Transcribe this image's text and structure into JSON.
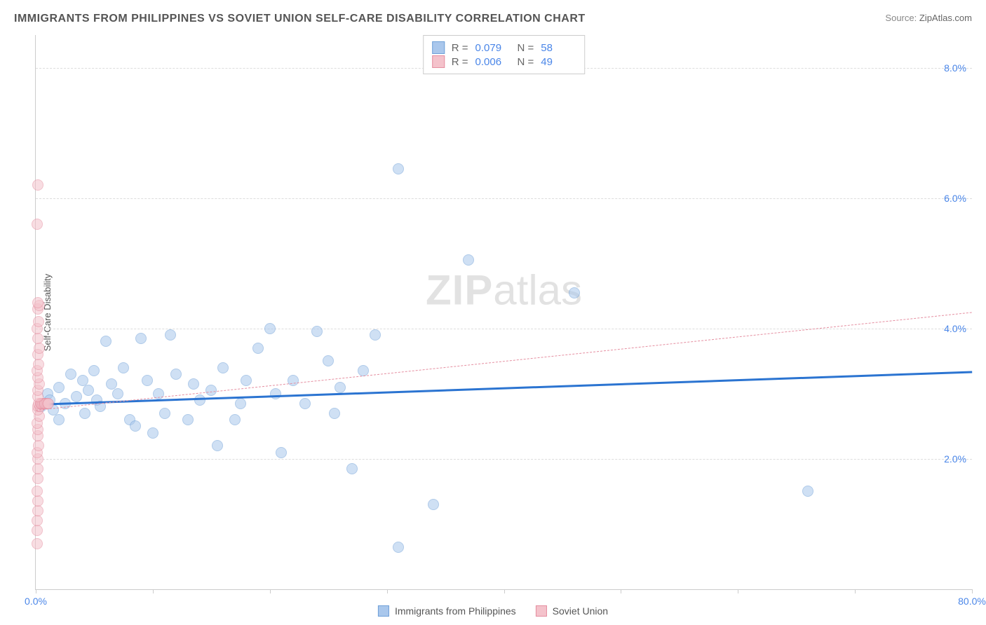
{
  "title": "IMMIGRANTS FROM PHILIPPINES VS SOVIET UNION SELF-CARE DISABILITY CORRELATION CHART",
  "source_label": "Source:",
  "source_value": "ZipAtlas.com",
  "watermark": {
    "bold": "ZIP",
    "rest": "atlas"
  },
  "ylabel": "Self-Care Disability",
  "chart": {
    "type": "scatter",
    "background_color": "#ffffff",
    "grid_color": "#dddddd",
    "axis_color": "#cccccc",
    "xlim": [
      0,
      80
    ],
    "ylim": [
      0,
      8.5
    ],
    "xticks": [
      0,
      10,
      20,
      30,
      40,
      50,
      60,
      70,
      80
    ],
    "xtick_labels": {
      "0": "0.0%",
      "80": "80.0%"
    },
    "xtick_label_color": "#4a86e8",
    "yticks": [
      2,
      4,
      6,
      8
    ],
    "ytick_labels": {
      "2": "2.0%",
      "4": "4.0%",
      "6": "6.0%",
      "8": "8.0%"
    },
    "ytick_label_color": "#4a86e8",
    "marker_radius": 8,
    "marker_opacity": 0.55,
    "series": [
      {
        "id": "philippines",
        "label": "Immigrants from Philippines",
        "color_fill": "#a9c7ec",
        "color_stroke": "#6fa0d8",
        "R": "0.079",
        "N": "58",
        "trend": {
          "y_at_x0": 2.85,
          "y_at_xmax": 3.35,
          "color": "#2b74d1",
          "width": 3,
          "dash": "solid"
        },
        "points": [
          [
            0.5,
            2.8
          ],
          [
            1,
            3.0
          ],
          [
            1.2,
            2.9
          ],
          [
            1.5,
            2.75
          ],
          [
            2,
            3.1
          ],
          [
            2,
            2.6
          ],
          [
            2.5,
            2.85
          ],
          [
            3,
            3.3
          ],
          [
            3.5,
            2.95
          ],
          [
            4,
            3.2
          ],
          [
            4.2,
            2.7
          ],
          [
            4.5,
            3.05
          ],
          [
            5,
            3.35
          ],
          [
            5.2,
            2.9
          ],
          [
            5.5,
            2.8
          ],
          [
            6,
            3.8
          ],
          [
            6.5,
            3.15
          ],
          [
            7,
            3.0
          ],
          [
            7.5,
            3.4
          ],
          [
            8,
            2.6
          ],
          [
            8.5,
            2.5
          ],
          [
            9,
            3.85
          ],
          [
            9.5,
            3.2
          ],
          [
            10,
            2.4
          ],
          [
            10.5,
            3.0
          ],
          [
            11,
            2.7
          ],
          [
            11.5,
            3.9
          ],
          [
            12,
            3.3
          ],
          [
            13,
            2.6
          ],
          [
            13.5,
            3.15
          ],
          [
            14,
            2.9
          ],
          [
            15,
            3.05
          ],
          [
            15.5,
            2.2
          ],
          [
            16,
            3.4
          ],
          [
            17,
            2.6
          ],
          [
            17.5,
            2.85
          ],
          [
            18,
            3.2
          ],
          [
            19,
            3.7
          ],
          [
            20,
            4.0
          ],
          [
            20.5,
            3.0
          ],
          [
            21,
            2.1
          ],
          [
            22,
            3.2
          ],
          [
            23,
            2.85
          ],
          [
            24,
            3.95
          ],
          [
            25,
            3.5
          ],
          [
            25.5,
            2.7
          ],
          [
            26,
            3.1
          ],
          [
            27,
            1.85
          ],
          [
            28,
            3.35
          ],
          [
            29,
            3.9
          ],
          [
            31,
            6.45
          ],
          [
            31,
            0.65
          ],
          [
            34,
            1.3
          ],
          [
            37,
            5.05
          ],
          [
            46,
            4.55
          ],
          [
            66,
            1.5
          ]
        ]
      },
      {
        "id": "soviet",
        "label": "Soviet Union",
        "color_fill": "#f4c2cb",
        "color_stroke": "#e58ea0",
        "R": "0.006",
        "N": "49",
        "trend": {
          "y_at_x0": 2.75,
          "y_at_xmax": 4.25,
          "color": "#e58ea0",
          "width": 1,
          "dash": "dashed"
        },
        "points": [
          [
            0.1,
            0.7
          ],
          [
            0.1,
            0.9
          ],
          [
            0.1,
            1.05
          ],
          [
            0.15,
            1.2
          ],
          [
            0.15,
            1.35
          ],
          [
            0.1,
            1.5
          ],
          [
            0.2,
            1.7
          ],
          [
            0.15,
            1.85
          ],
          [
            0.2,
            2.0
          ],
          [
            0.1,
            2.1
          ],
          [
            0.25,
            2.2
          ],
          [
            0.15,
            2.35
          ],
          [
            0.2,
            2.45
          ],
          [
            0.1,
            2.55
          ],
          [
            0.3,
            2.65
          ],
          [
            0.2,
            2.75
          ],
          [
            0.15,
            2.8
          ],
          [
            0.35,
            2.8
          ],
          [
            0.25,
            2.85
          ],
          [
            0.4,
            2.85
          ],
          [
            0.5,
            2.85
          ],
          [
            0.6,
            2.85
          ],
          [
            0.7,
            2.85
          ],
          [
            0.8,
            2.85
          ],
          [
            0.9,
            2.85
          ],
          [
            1.0,
            2.85
          ],
          [
            1.1,
            2.85
          ],
          [
            0.2,
            2.95
          ],
          [
            0.15,
            3.05
          ],
          [
            0.3,
            3.15
          ],
          [
            0.2,
            3.25
          ],
          [
            0.1,
            3.35
          ],
          [
            0.25,
            3.45
          ],
          [
            0.15,
            3.6
          ],
          [
            0.3,
            3.7
          ],
          [
            0.2,
            3.85
          ],
          [
            0.1,
            4.0
          ],
          [
            0.25,
            4.1
          ],
          [
            0.15,
            4.3
          ],
          [
            0.3,
            4.35
          ],
          [
            0.2,
            4.4
          ],
          [
            0.1,
            5.6
          ],
          [
            0.15,
            6.2
          ]
        ]
      }
    ]
  },
  "legend_top": {
    "stat_label_color": "#666666",
    "stat_value_color": "#4a86e8"
  },
  "legend_bottom_text_color": "#555555"
}
